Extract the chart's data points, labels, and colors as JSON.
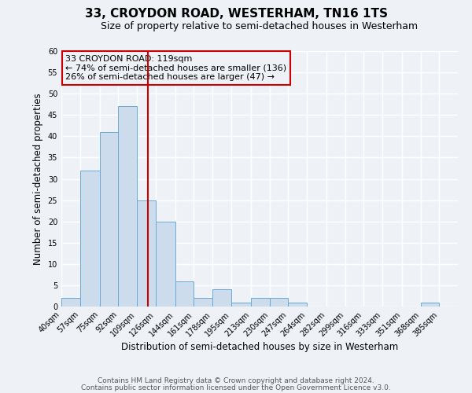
{
  "title": "33, CROYDON ROAD, WESTERHAM, TN16 1TS",
  "subtitle": "Size of property relative to semi-detached houses in Westerham",
  "xlabel": "Distribution of semi-detached houses by size in Westerham",
  "ylabel": "Number of semi-detached properties",
  "bin_labels": [
    "40sqm",
    "57sqm",
    "75sqm",
    "92sqm",
    "109sqm",
    "126sqm",
    "144sqm",
    "161sqm",
    "178sqm",
    "195sqm",
    "213sqm",
    "230sqm",
    "247sqm",
    "264sqm",
    "282sqm",
    "299sqm",
    "316sqm",
    "333sqm",
    "351sqm",
    "368sqm",
    "385sqm"
  ],
  "bar_values": [
    2,
    32,
    41,
    47,
    25,
    20,
    6,
    2,
    4,
    1,
    2,
    2,
    1,
    0,
    0,
    0,
    0,
    0,
    0,
    1,
    0
  ],
  "bin_edges": [
    40,
    57,
    75,
    92,
    109,
    126,
    144,
    161,
    178,
    195,
    213,
    230,
    247,
    264,
    282,
    299,
    316,
    333,
    351,
    368,
    385,
    402
  ],
  "bar_color": "#ccdcec",
  "bar_edge_color": "#6aaad4",
  "property_value": 119,
  "vline_color": "#cc0000",
  "annotation_line1": "33 CROYDON ROAD: 119sqm",
  "annotation_line2": "← 74% of semi-detached houses are smaller (136)",
  "annotation_line3": "26% of semi-detached houses are larger (47) →",
  "annotation_box_edge": "#cc0000",
  "ylim": [
    0,
    60
  ],
  "yticks": [
    0,
    5,
    10,
    15,
    20,
    25,
    30,
    35,
    40,
    45,
    50,
    55,
    60
  ],
  "footer_line1": "Contains HM Land Registry data © Crown copyright and database right 2024.",
  "footer_line2": "Contains public sector information licensed under the Open Government Licence v3.0.",
  "background_color": "#eef2f7",
  "grid_color": "#ffffff",
  "title_fontsize": 11,
  "subtitle_fontsize": 9,
  "axis_label_fontsize": 8.5,
  "tick_label_fontsize": 7,
  "annotation_fontsize": 8,
  "footer_fontsize": 6.5
}
